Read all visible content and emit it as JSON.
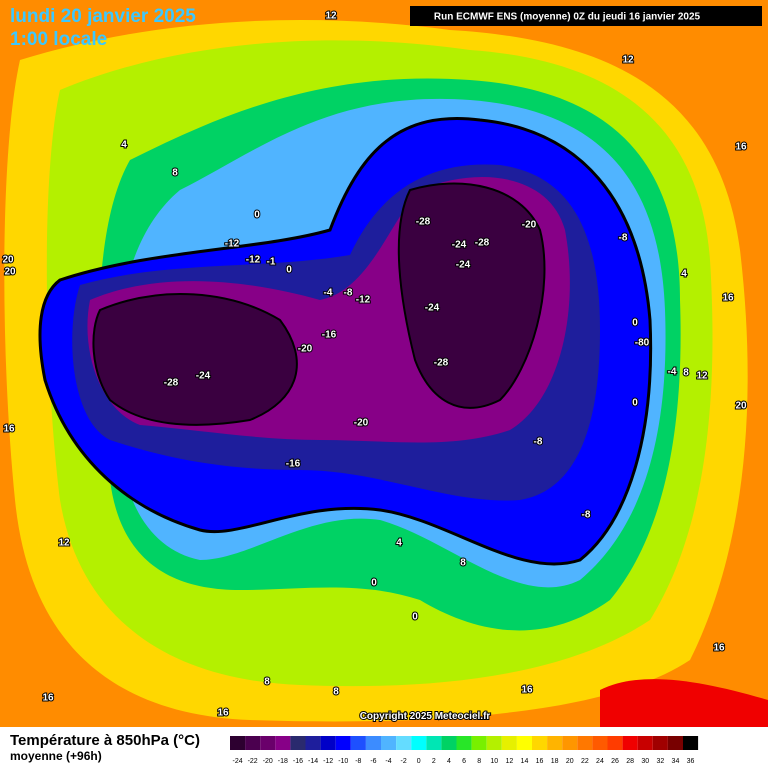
{
  "header": {
    "date": "lundi 20 janvier 2025",
    "time": "1:00 locale",
    "run": "Run ECMWF ENS (moyenne) 0Z du jeudi 16 janvier 2025"
  },
  "copyright": "Copyright 2025 Meteociel.fr",
  "legend": {
    "title": "Température à 850hPa (°C)",
    "subtitle": "moyenne   (+96h)",
    "scale": [
      -24,
      -22,
      -20,
      -18,
      -16,
      -14,
      -12,
      -10,
      -8,
      -6,
      -4,
      -2,
      0,
      2,
      4,
      6,
      8,
      10,
      12,
      14,
      16,
      18,
      20,
      22,
      24,
      26,
      28,
      30,
      32,
      34,
      36
    ],
    "colors": [
      "#2d0030",
      "#4b004f",
      "#6a006b",
      "#870087",
      "#2a2a6e",
      "#1e1e9c",
      "#0000c8",
      "#0000ff",
      "#1e50ff",
      "#3c8cff",
      "#50b4ff",
      "#64dcff",
      "#00ffff",
      "#00e6b4",
      "#00d264",
      "#28e628",
      "#78f000",
      "#b4f000",
      "#e6f000",
      "#ffff00",
      "#ffd700",
      "#ffb400",
      "#ff9600",
      "#ff7800",
      "#ff5a00",
      "#ff3c00",
      "#f00000",
      "#c80000",
      "#a00000",
      "#780000",
      "#000000"
    ]
  },
  "map_labels": [
    "12",
    "12",
    "4",
    "8",
    "16",
    "0",
    "-12",
    "-12",
    "-1",
    "0",
    "-4",
    "-8",
    "-12",
    "-28",
    "-24",
    "-28",
    "-20",
    "-24",
    "-8",
    "4",
    "16",
    "-24",
    "0",
    "-16",
    "-20",
    "-80",
    "-28",
    "-4",
    "8",
    "12",
    "-28",
    "-24",
    "0",
    "20",
    "-20",
    "16",
    "-8",
    "-16",
    "-8",
    "12",
    "4",
    "8",
    "0",
    "0",
    "8",
    "8",
    "16",
    "16",
    "16",
    "16",
    "20",
    "20"
  ]
}
